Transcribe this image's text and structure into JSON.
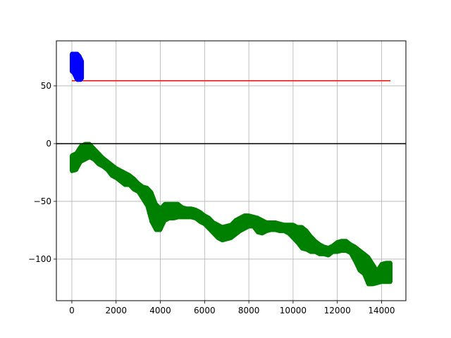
{
  "chart_data": {
    "type": "scatter",
    "title": "",
    "xlabel": "",
    "ylabel": "",
    "xlim": [
      -700,
      15100
    ],
    "ylim": [
      -136,
      89
    ],
    "grid": true,
    "x_ticks": [
      {
        "value": 0,
        "label": "0"
      },
      {
        "value": 2000,
        "label": "2000"
      },
      {
        "value": 4000,
        "label": "4000"
      },
      {
        "value": 6000,
        "label": "6000"
      },
      {
        "value": 8000,
        "label": "8000"
      },
      {
        "value": 10000,
        "label": "10000"
      },
      {
        "value": 12000,
        "label": "12000"
      },
      {
        "value": 14000,
        "label": "14000"
      }
    ],
    "y_ticks": [
      {
        "value": 50,
        "label": "50"
      },
      {
        "value": 0,
        "label": "0"
      },
      {
        "value": -50,
        "label": "−50"
      },
      {
        "value": -100,
        "label": "−100"
      }
    ],
    "reference_lines": [
      {
        "kind": "horizontal",
        "y": 0,
        "color": "#000000"
      }
    ],
    "series": [
      {
        "style": "line",
        "color": "#ff0000",
        "x": [
          0,
          14400
        ],
        "y": [
          54.5,
          54.5
        ]
      },
      {
        "style": "band",
        "color": "#0000ff",
        "x": [
          0,
          50,
          100,
          150,
          200,
          250,
          300,
          350,
          400,
          450
        ],
        "y_low": [
          62,
          62,
          60,
          58,
          56,
          55,
          55,
          55,
          55,
          56
        ],
        "y_high": [
          78,
          78,
          78,
          78,
          78,
          78,
          77,
          76,
          74,
          72
        ]
      },
      {
        "style": "band",
        "color": "#008000",
        "x": [
          0,
          200,
          400,
          600,
          800,
          1000,
          1200,
          1400,
          1600,
          1800,
          2000,
          2200,
          2400,
          2600,
          2800,
          3000,
          3200,
          3400,
          3600,
          3800,
          4000,
          4200,
          4400,
          4600,
          4800,
          5000,
          5200,
          5400,
          5600,
          5800,
          6000,
          6200,
          6400,
          6600,
          6800,
          7000,
          7200,
          7400,
          7600,
          7800,
          8000,
          8200,
          8400,
          8600,
          8800,
          9000,
          9200,
          9400,
          9600,
          9800,
          10000,
          10200,
          10400,
          10600,
          10800,
          11000,
          11200,
          11400,
          11600,
          11800,
          12000,
          12200,
          12400,
          12600,
          12800,
          13000,
          13200,
          13400,
          13600,
          13800,
          14000,
          14200,
          14400
        ],
        "y_low": [
          -24,
          -23,
          -16,
          -14,
          -12,
          -14,
          -18,
          -20,
          -23,
          -28,
          -30,
          -33,
          -36,
          -36,
          -40,
          -42,
          -48,
          -54,
          -68,
          -75,
          -75,
          -67,
          -65,
          -65,
          -64,
          -64,
          -64,
          -64,
          -65,
          -68,
          -70,
          -74,
          -78,
          -82,
          -84,
          -83,
          -82,
          -79,
          -76,
          -74,
          -72,
          -72,
          -77,
          -78,
          -76,
          -75,
          -75,
          -76,
          -76,
          -78,
          -82,
          -86,
          -91,
          -92,
          -94,
          -94,
          -96,
          -96,
          -97,
          -94,
          -94,
          -93,
          -93,
          -95,
          -102,
          -110,
          -113,
          -122,
          -122,
          -121,
          -120,
          -120,
          -120
        ],
        "y_high": [
          -10,
          -8,
          -2,
          0,
          0,
          -4,
          -8,
          -12,
          -15,
          -18,
          -21,
          -23,
          -25,
          -27,
          -30,
          -34,
          -37,
          -38,
          -42,
          -52,
          -56,
          -52,
          -52,
          -52,
          -52,
          -55,
          -56,
          -56,
          -57,
          -59,
          -62,
          -64,
          -68,
          -70,
          -72,
          -71,
          -70,
          -66,
          -64,
          -62,
          -62,
          -63,
          -64,
          -66,
          -68,
          -68,
          -68,
          -69,
          -70,
          -70,
          -70,
          -72,
          -72,
          -75,
          -80,
          -84,
          -87,
          -89,
          -90,
          -88,
          -85,
          -84,
          -84,
          -87,
          -89,
          -92,
          -95,
          -98,
          -104,
          -110,
          -104,
          -103,
          -103
        ]
      }
    ]
  }
}
